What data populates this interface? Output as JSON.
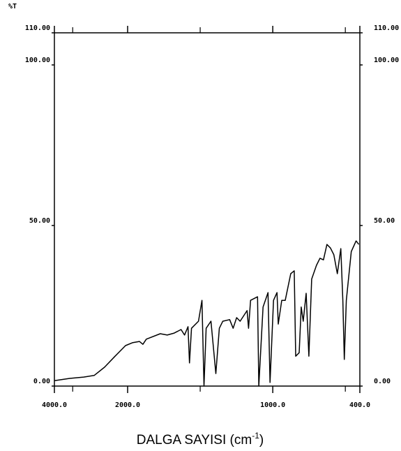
{
  "chart_data": {
    "type": "line",
    "title": "%T",
    "x_label": "DALGA SAYISI",
    "x_unit": "cm",
    "x_unit_exponent": "-1",
    "xlim": [
      4000,
      400
    ],
    "x_scale_break": 2000,
    "xticks": [
      {
        "value": 4000,
        "label": "4000.0"
      },
      {
        "value": 2000,
        "label": "2000.0"
      },
      {
        "value": 1000,
        "label": "1000.0"
      },
      {
        "value": 400,
        "label": "400.0"
      }
    ],
    "xminor_ticks": [
      3500,
      1500,
      500
    ],
    "ylim": [
      0,
      110
    ],
    "yticks": [
      {
        "value": 0,
        "label": "0.00"
      },
      {
        "value": 50,
        "label": "50.00"
      },
      {
        "value": 100,
        "label": "100.00"
      },
      {
        "value": 110,
        "label": "110.00"
      }
    ],
    "color": "#000000",
    "x": [
      4000,
      3581,
      3200,
      2914,
      2629,
      2343,
      2057,
      1967,
      1919,
      1895,
      1871,
      1775,
      1727,
      1679,
      1632,
      1608,
      1584,
      1574,
      1560,
      1512,
      1488,
      1474,
      1459,
      1426,
      1392,
      1368,
      1344,
      1297,
      1273,
      1249,
      1225,
      1177,
      1167,
      1153,
      1105,
      1096,
      1067,
      1033,
      1019,
      995,
      971,
      962,
      938,
      914,
      876,
      852,
      842,
      818,
      804,
      790,
      770,
      751,
      732,
      699,
      675,
      651,
      627,
      603,
      579,
      555,
      531,
      517,
      507,
      493,
      459,
      426,
      407
    ],
    "values": [
      1.7,
      2.4,
      2.8,
      3.3,
      5.9,
      9.3,
      12.6,
      13.5,
      13.9,
      13.0,
      14.6,
      16.3,
      15.9,
      16.5,
      17.6,
      15.9,
      18.5,
      7.2,
      18.0,
      20.2,
      26.7,
      0,
      18.0,
      20.2,
      3.9,
      18.0,
      20.2,
      20.7,
      18.0,
      21.3,
      20.2,
      23.5,
      18.0,
      26.7,
      27.8,
      0,
      24.6,
      29.1,
      1.1,
      26.7,
      29.1,
      19.3,
      26.7,
      26.7,
      35.0,
      35.9,
      9.3,
      10.4,
      24.6,
      20.2,
      28.9,
      9.3,
      33.3,
      37.6,
      39.8,
      39.3,
      44.1,
      43.0,
      40.9,
      35.0,
      42.8,
      26.7,
      8.3,
      26.7,
      41.9,
      45.2,
      44.1
    ]
  }
}
